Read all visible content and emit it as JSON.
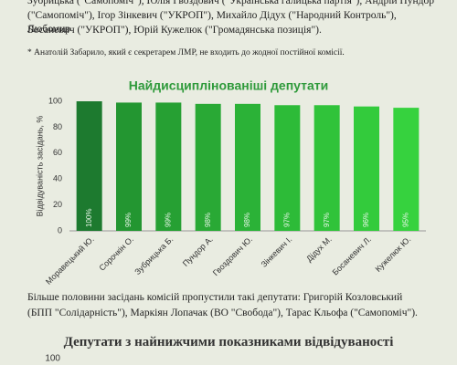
{
  "text_top": [
    "Зубрицька (\"Самопоміч\"), Юлія Гвоздович (\"Українська галицька партія\"), Андрій Пундор",
    "(\"Самопоміч\"), Ігор Зінкевич (\"УКРОП\"), Михайло Дідух (\"Народний Контроль\"), Любомир",
    "Босаневич (\"УКРОП\"), Юрій Кужелюк (\"Громадянська позиція\")."
  ],
  "footnote": "* Анатолій Забарило, який є секретарем ЛМР, не входить до жодної постійної комісії.",
  "chart_data": {
    "type": "bar",
    "title": "Найдисциплінованіші депутати",
    "y_label": "Відвідуваність засідань, %",
    "categories": [
      "Моравецький Ю.",
      "Сорочкін О.",
      "Зубрицька Б.",
      "Пундор А.",
      "Гвоздович Ю.",
      "Зінкевич І.",
      "Дідух М.",
      "Босаневич Л.",
      "Кужелюк Ю."
    ],
    "values": [
      100,
      99,
      99,
      98,
      98,
      97,
      97,
      96,
      95
    ],
    "value_labels": [
      "100%",
      "99%",
      "99%",
      "98%",
      "98%",
      "97%",
      "97%",
      "96%",
      "95%"
    ],
    "colors": [
      "#1d7a2f",
      "#239631",
      "#26a033",
      "#29a935",
      "#2bb237",
      "#2dbb38",
      "#30c33a",
      "#33cb3c",
      "#36d23e"
    ],
    "ylim": [
      0,
      100
    ],
    "yticks": [
      0,
      20,
      40,
      60,
      80,
      100
    ],
    "grid": false
  },
  "paragraph": "Більше половини засідань комісій пропустили такі депутати: Григорій Козловський (БПП \"Солідарність\"), Маркіян Лопачак (ВО \"Свобода\"), Тарас Кльофа (\"Самопоміч\").",
  "second_chart": {
    "title": "Депутати з найнижчими показниками відвідуваності",
    "ytick_top": 100
  }
}
